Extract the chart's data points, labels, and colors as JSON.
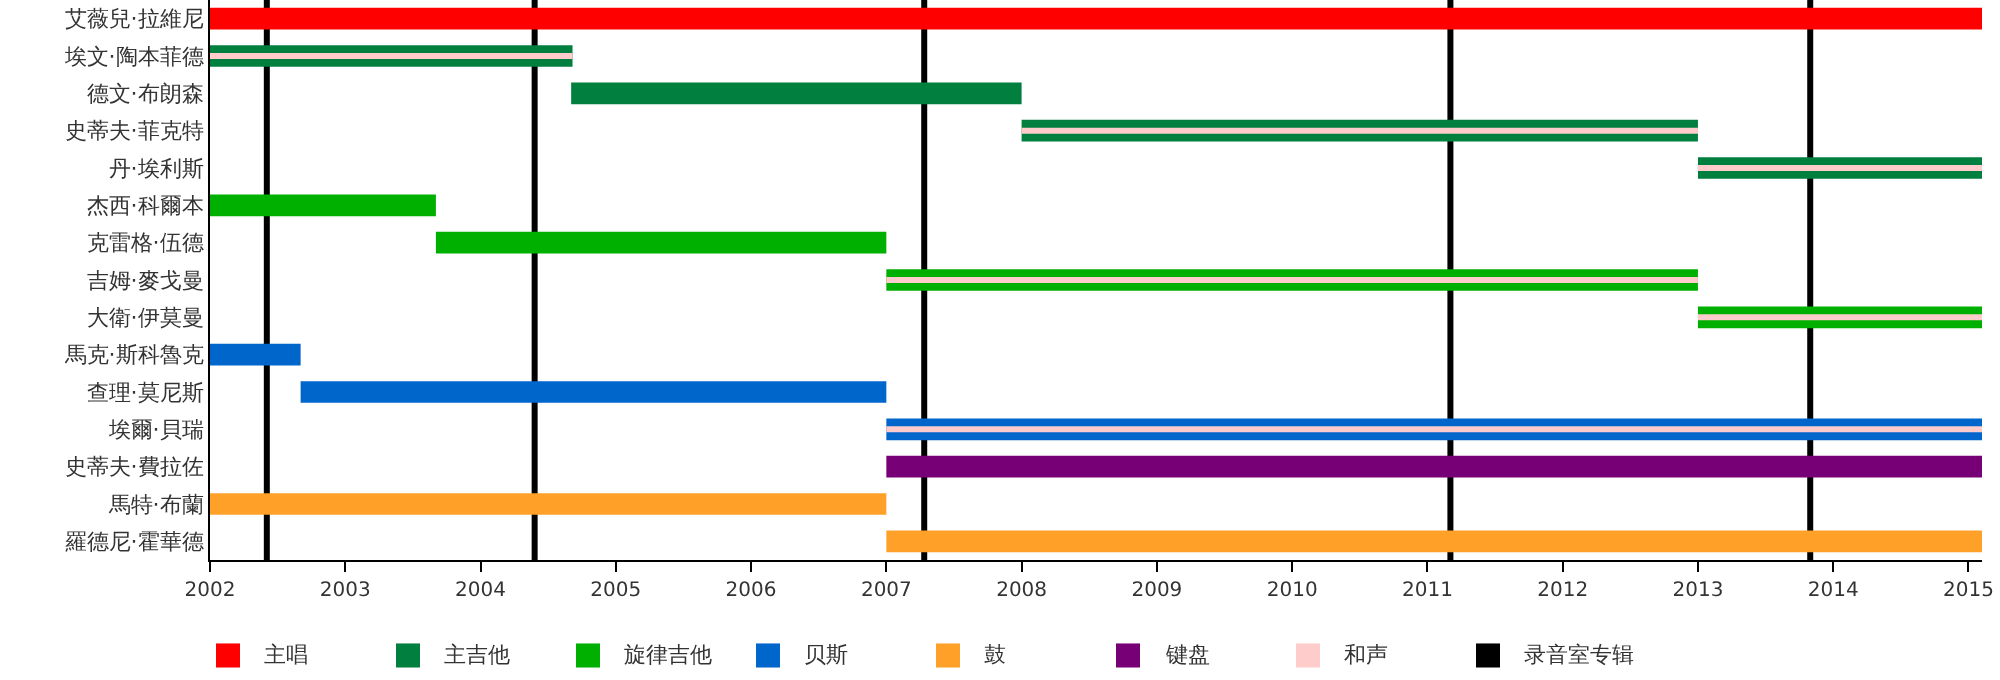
{
  "chart_data": {
    "type": "bar",
    "orientation": "horizontal",
    "categories": [
      "艾薇兒·拉維尼",
      "埃文·陶本菲德",
      "德文·布朗森",
      "史蒂夫·菲克特",
      "丹·埃利斯",
      "杰西·科爾本",
      "克雷格·伍德",
      "吉姆·麥戈曼",
      "大衛·伊莫曼",
      "馬克·斯科魯克",
      "查理·莫尼斯",
      "埃爾·貝瑞",
      "史蒂夫·費拉佐",
      "馬特·布蘭",
      "羅德尼·霍華德"
    ],
    "series": [
      {
        "name": "主唱",
        "color": "#ff0000",
        "base": [
          2002,
          null,
          null,
          null,
          null,
          null,
          null,
          null,
          null,
          null,
          null,
          null,
          null,
          null,
          null
        ],
        "values": [
          13.1,
          null,
          null,
          null,
          null,
          null,
          null,
          null,
          null,
          null,
          null,
          null,
          null,
          null,
          null
        ]
      },
      {
        "name": "主吉他",
        "color": "#007f3f",
        "base": [
          null,
          2002,
          2004.67,
          2008,
          2013,
          null,
          null,
          null,
          null,
          null,
          null,
          null,
          null,
          null,
          null
        ],
        "values": [
          null,
          2.68,
          3.33,
          5,
          2.1,
          null,
          null,
          null,
          null,
          null,
          null,
          null,
          null,
          null,
          null
        ]
      },
      {
        "name": "旋律吉他",
        "color": "#00b000",
        "base": [
          null,
          null,
          null,
          null,
          null,
          2002,
          2003.67,
          2007,
          2013,
          null,
          null,
          null,
          null,
          null,
          null
        ],
        "values": [
          null,
          null,
          null,
          null,
          null,
          1.67,
          3.33,
          6,
          2.1,
          null,
          null,
          null,
          null,
          null,
          null
        ]
      },
      {
        "name": "贝斯",
        "color": "#0066cc",
        "base": [
          null,
          null,
          null,
          null,
          null,
          null,
          null,
          null,
          null,
          2002,
          2002.67,
          2007,
          null,
          null,
          null
        ],
        "values": [
          null,
          null,
          null,
          null,
          null,
          null,
          null,
          null,
          null,
          0.67,
          4.33,
          8.1,
          null,
          null,
          null
        ]
      },
      {
        "name": "鼓",
        "color": "#ffa028",
        "base": [
          null,
          null,
          null,
          null,
          null,
          null,
          null,
          null,
          null,
          null,
          null,
          null,
          null,
          2002,
          2007
        ],
        "values": [
          null,
          null,
          null,
          null,
          null,
          null,
          null,
          null,
          null,
          null,
          null,
          null,
          null,
          5,
          8.1
        ]
      },
      {
        "name": "键盘",
        "color": "#770077",
        "base": [
          null,
          null,
          null,
          null,
          null,
          null,
          null,
          null,
          null,
          null,
          null,
          null,
          2007,
          null,
          null
        ],
        "values": [
          null,
          null,
          null,
          null,
          null,
          null,
          null,
          null,
          null,
          null,
          null,
          null,
          8.1,
          null,
          null
        ]
      },
      {
        "name": "和声",
        "color": "#ffcccc",
        "base": [
          null,
          2002,
          null,
          2008,
          2013,
          null,
          null,
          2007,
          2013,
          null,
          null,
          2007,
          null,
          null,
          null
        ],
        "values": [
          null,
          2.68,
          null,
          5,
          2.1,
          null,
          null,
          6,
          2.1,
          null,
          null,
          8.1,
          null,
          null,
          null
        ]
      }
    ],
    "ref_lines": [
      {
        "axis": "x",
        "value": 2002.42,
        "label": "录音室专辑",
        "color": "#000000"
      },
      {
        "axis": "x",
        "value": 2004.4,
        "color": "#000000"
      },
      {
        "axis": "x",
        "value": 2007.28,
        "color": "#000000"
      },
      {
        "axis": "x",
        "value": 2011.17,
        "color": "#000000"
      },
      {
        "axis": "x",
        "value": 2013.83,
        "color": "#000000"
      }
    ],
    "xlim": [
      2002,
      2015.1
    ],
    "xticks": [
      2002,
      2003,
      2004,
      2005,
      2006,
      2007,
      2008,
      2009,
      2010,
      2011,
      2012,
      2013,
      2014,
      2015
    ],
    "legend": "bottom"
  }
}
